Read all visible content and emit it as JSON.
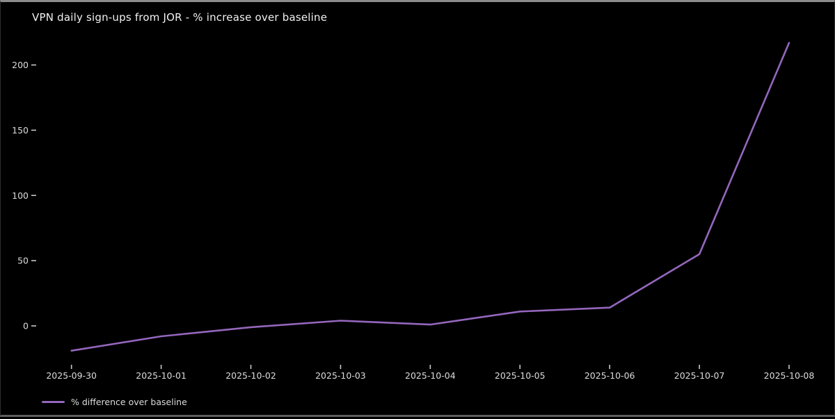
{
  "chart_data": {
    "type": "line",
    "title": "VPN daily sign-ups from JOR - % increase over baseline",
    "x": [
      "2025-09-30",
      "2025-10-01",
      "2025-10-02",
      "2025-10-03",
      "2025-10-04",
      "2025-10-05",
      "2025-10-06",
      "2025-10-07",
      "2025-10-08"
    ],
    "series": [
      {
        "name": "% difference over baseline",
        "values": [
          -19,
          -8,
          -1,
          4,
          1,
          11,
          14,
          55,
          217
        ],
        "color": "#9467bd"
      }
    ],
    "yticks": [
      0,
      50,
      100,
      150,
      200
    ],
    "ylim": [
      -30,
      228
    ],
    "xlabel": "",
    "ylabel": "",
    "grid": false,
    "legend_position": "lower-left",
    "background_color": "#000000",
    "text_color": "#dcdcdc",
    "frame_border_color": "#8c8c8c"
  }
}
